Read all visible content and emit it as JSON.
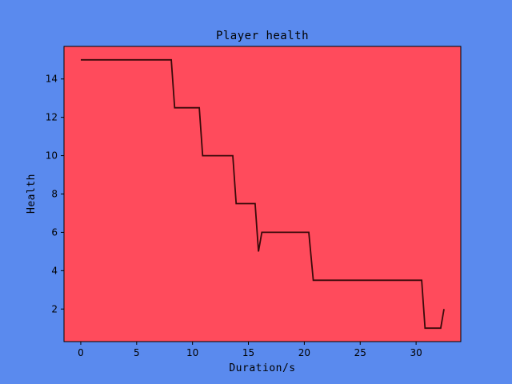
{
  "colors": {
    "figure_background": "#5a8aee",
    "plot_background": "#ff4b5c",
    "line": "#3a0a0a"
  },
  "chart_data": {
    "type": "line",
    "title": "Player health",
    "xlabel": "Duration/s",
    "ylabel": "Health",
    "xlim": [
      -1.5,
      34
    ],
    "ylim": [
      0.3,
      15.7
    ],
    "xticks": [
      0,
      5,
      10,
      15,
      20,
      25,
      30
    ],
    "yticks": [
      2,
      4,
      6,
      8,
      10,
      12,
      14
    ],
    "grid": false,
    "series": [
      {
        "x": [
          0,
          8.1,
          8.4,
          10.6,
          10.9,
          13.6,
          13.9,
          15.6,
          15.9,
          16.2,
          20.4,
          20.8,
          30.5,
          30.8,
          32.2,
          32.5
        ],
        "y": [
          15,
          15,
          12.5,
          12.5,
          10,
          10,
          7.5,
          7.5,
          5,
          6,
          6,
          3.5,
          3.5,
          1,
          1,
          2
        ]
      }
    ]
  }
}
